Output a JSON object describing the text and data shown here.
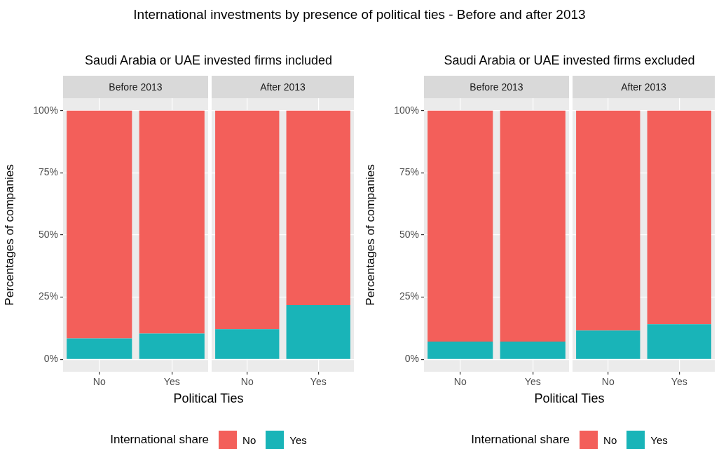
{
  "chart_data": [
    {
      "type": "bar",
      "title": "Before 2013",
      "subtitle": "Saudi Arabia or UAE invested firms included",
      "annotations": [
        "International investments by presence of political ties - Before and after 2013"
      ],
      "categories": [
        "No",
        "Yes"
      ],
      "stacked": true,
      "series": [
        {
          "name": "Yes",
          "color": "#19b4b8",
          "values": [
            8.4,
            10.4
          ]
        },
        {
          "name": "No",
          "color": "#f35f5a",
          "values": [
            91.6,
            89.6
          ]
        }
      ],
      "ylim": [
        -5,
        105
      ],
      "yticks": [
        {
          "value": 0,
          "label": "0%"
        },
        {
          "value": 25,
          "label": "25%"
        },
        {
          "value": 50,
          "label": "50%"
        },
        {
          "value": 75,
          "label": "75%"
        },
        {
          "value": 100,
          "label": "100%"
        }
      ],
      "grid": true,
      "ylabel": "Percentages of companies",
      "xlabel": "Political Ties",
      "legend": "bottom",
      "legend_title": "International share"
    },
    {
      "type": "bar",
      "title": "After 2013",
      "categories": [
        "No",
        "Yes"
      ],
      "stacked": true,
      "series": [
        {
          "color": "#19b4b8",
          "values": [
            12.1,
            21.8
          ]
        },
        {
          "color": "#f35f5a",
          "values": [
            87.9,
            78.2
          ]
        }
      ],
      "ylim": [
        -5,
        105
      ],
      "yticks": [
        0,
        25,
        50,
        75,
        100
      ],
      "grid": true,
      "tick_labels": "x"
    },
    {
      "type": "bar",
      "title": "Before 2013",
      "subtitle": "Saudi Arabia or UAE invested firms excluded",
      "categories": [
        "No",
        "Yes"
      ],
      "stacked": true,
      "series": [
        {
          "name": "Yes",
          "color": "#19b4b8",
          "values": [
            7.1,
            7.1
          ]
        },
        {
          "name": "No",
          "color": "#f35f5a",
          "values": [
            92.9,
            92.9
          ]
        }
      ],
      "ylim": [
        -5,
        105
      ],
      "yticks": [
        {
          "value": 0,
          "label": "0%"
        },
        {
          "value": 25,
          "label": "25%"
        },
        {
          "value": 50,
          "label": "50%"
        },
        {
          "value": 75,
          "label": "75%"
        },
        {
          "value": 100,
          "label": "100%"
        }
      ],
      "grid": true,
      "ylabel": "Percentages of companies",
      "xlabel": "Political Ties",
      "legend": "bottom",
      "legend_title": "International share"
    },
    {
      "type": "bar",
      "title": "After 2013",
      "categories": [
        "No",
        "Yes"
      ],
      "stacked": true,
      "series": [
        {
          "color": "#19b4b8",
          "values": [
            11.6,
            14.1
          ]
        },
        {
          "color": "#f35f5a",
          "values": [
            88.4,
            85.9
          ]
        }
      ],
      "ylim": [
        -5,
        105
      ],
      "yticks": [
        0,
        25,
        50,
        75,
        100
      ],
      "grid": true,
      "tick_labels": "x"
    }
  ]
}
